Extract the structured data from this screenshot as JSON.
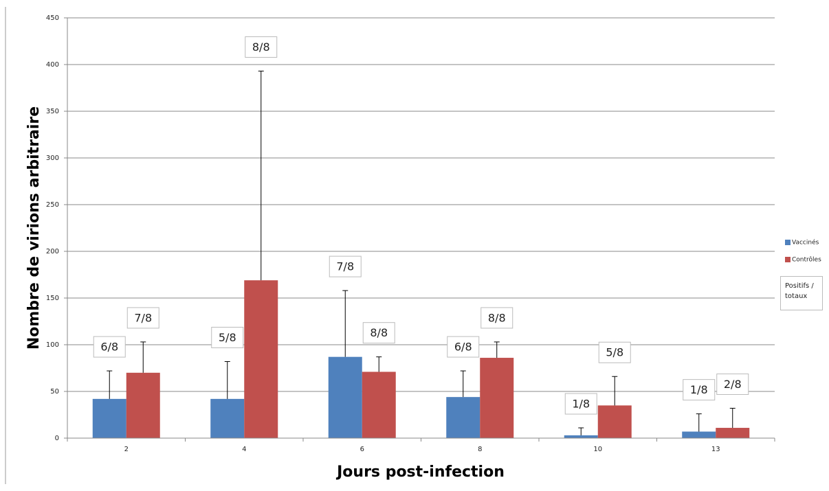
{
  "chart_data": {
    "type": "bar",
    "x_label": "Jours post-infection",
    "y_label": "Nombre de virions  arbitraire",
    "categories": [
      "2",
      "4",
      "6",
      "8",
      "10",
      "13"
    ],
    "series": [
      {
        "name": "Vaccinés",
        "color": "#4f81bd",
        "values": [
          42,
          42,
          87,
          44,
          3,
          7
        ],
        "errors": [
          30,
          40,
          71,
          28,
          8,
          19
        ],
        "annotations": [
          "6/8",
          "5/8",
          "7/8",
          "6/8",
          "1/8",
          "1/8"
        ]
      },
      {
        "name": "Contrôles",
        "color": "#c0504d",
        "values": [
          70,
          169,
          71,
          86,
          35,
          11
        ],
        "errors": [
          33,
          224,
          16,
          17,
          31,
          21
        ],
        "annotations": [
          "7/8",
          "8/8",
          "8/8",
          "8/8",
          "5/8",
          "2/8"
        ]
      }
    ],
    "legend_note": "Positifs / totaux",
    "ylim": [
      0,
      450
    ],
    "yticks": [
      0,
      50,
      100,
      150,
      200,
      250,
      300,
      350,
      400,
      450
    ],
    "grid": true,
    "legend_position": "right"
  }
}
